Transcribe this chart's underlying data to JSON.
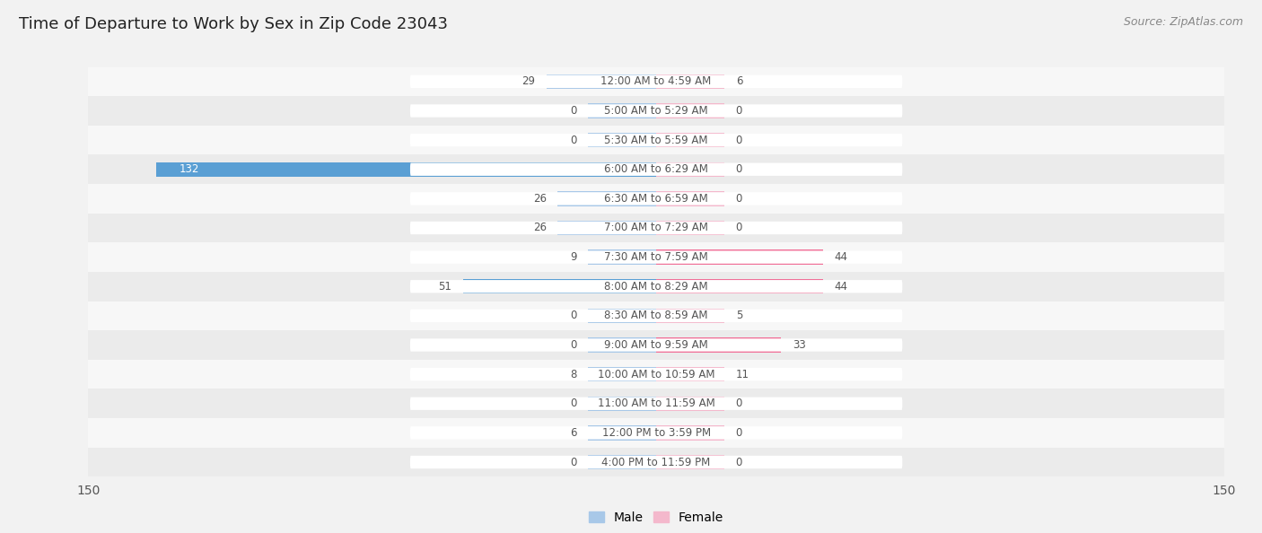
{
  "title": "Time of Departure to Work by Sex in Zip Code 23043",
  "source": "Source: ZipAtlas.com",
  "categories": [
    "12:00 AM to 4:59 AM",
    "5:00 AM to 5:29 AM",
    "5:30 AM to 5:59 AM",
    "6:00 AM to 6:29 AM",
    "6:30 AM to 6:59 AM",
    "7:00 AM to 7:29 AM",
    "7:30 AM to 7:59 AM",
    "8:00 AM to 8:29 AM",
    "8:30 AM to 8:59 AM",
    "9:00 AM to 9:59 AM",
    "10:00 AM to 10:59 AM",
    "11:00 AM to 11:59 AM",
    "12:00 PM to 3:59 PM",
    "4:00 PM to 11:59 PM"
  ],
  "male_values": [
    29,
    0,
    0,
    132,
    26,
    26,
    9,
    51,
    0,
    0,
    8,
    0,
    6,
    0
  ],
  "female_values": [
    6,
    0,
    0,
    0,
    0,
    0,
    44,
    44,
    5,
    33,
    11,
    0,
    0,
    0
  ],
  "male_color_normal": "#a8c8e8",
  "male_color_strong": "#5a9fd4",
  "female_color_normal": "#f4b8cc",
  "female_color_strong": "#f07098",
  "axis_limit": 150,
  "bg_color": "#f2f2f2",
  "row_color_odd": "#f7f7f7",
  "row_color_even": "#ebebeb",
  "title_fontsize": 13,
  "label_fontsize": 8.5,
  "source_fontsize": 9,
  "bar_height": 0.5,
  "min_bar": 18,
  "label_color": "#555555",
  "strong_threshold": 30
}
